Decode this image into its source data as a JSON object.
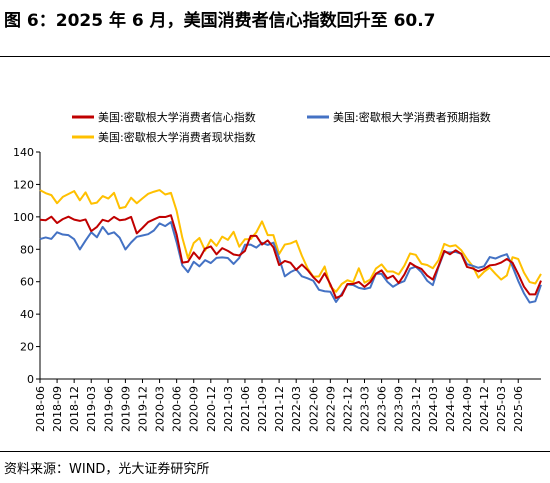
{
  "page": {
    "title": "图 6：2025 年 6 月，美国消费者信心指数回升至 60.7",
    "source": "资料来源：WIND，光大证券研究所"
  },
  "chart_data": {
    "type": "line",
    "title": "",
    "xlabel": "",
    "ylabel": "",
    "ylim": [
      0,
      140
    ],
    "yticks": [
      "0",
      "20",
      "40",
      "60",
      "80",
      "100",
      "120",
      "140"
    ],
    "xtick_labels": [
      "2018-06",
      "2018-09",
      "2018-12",
      "2019-03",
      "2019-06",
      "2019-09",
      "2019-12",
      "2020-03",
      "2020-06",
      "2020-09",
      "2020-12",
      "2021-03",
      "2021-06",
      "2021-09",
      "2021-12",
      "2022-03",
      "2022-06",
      "2022-09",
      "2022-12",
      "2023-03",
      "2023-06",
      "2023-09",
      "2023-12",
      "2024-03",
      "2024-06",
      "2024-09",
      "2024-12",
      "2025-03",
      "2025-06"
    ],
    "legend_placement": "top",
    "grid": false,
    "series": [
      {
        "name": "美国:密歇根大学消费者信心指数",
        "color": "#c00000",
        "values": [
          98.2,
          97.9,
          100.1,
          96.2,
          98.6,
          100.1,
          98.3,
          97.5,
          98.4,
          91.2,
          93.8,
          98.2,
          97.2,
          100.0,
          97.9,
          98.4,
          100.0,
          89.8,
          93.2,
          96.8,
          98.4,
          100.0,
          99.9,
          101.0,
          89.1,
          71.8,
          72.3,
          78.1,
          74.1,
          80.4,
          81.8,
          76.9,
          80.7,
          79.0,
          76.8,
          76.2,
          79.0,
          88.3,
          88.3,
          82.9,
          85.5,
          81.2,
          70.3,
          72.8,
          71.7,
          67.4,
          70.6,
          67.2,
          62.8,
          59.4,
          65.2,
          58.4,
          50.0,
          51.5,
          58.6,
          58.6,
          59.9,
          56.8,
          59.7,
          64.9,
          67.0,
          62.0,
          63.7,
          59.2,
          64.4,
          71.6,
          69.4,
          67.9,
          63.8,
          61.3,
          69.7,
          79.0,
          76.9,
          79.4,
          77.2,
          69.1,
          68.2,
          66.4,
          67.9,
          70.1,
          70.5,
          71.8,
          74.0,
          71.7,
          64.7,
          57.0,
          52.2,
          52.2,
          60.7
        ]
      },
      {
        "name": "美国:密歇根大学消费者预期指数",
        "color": "#4472c4",
        "values": [
          86.3,
          87.3,
          86.4,
          90.5,
          89.1,
          88.7,
          86.2,
          79.9,
          85.4,
          90.5,
          87.4,
          93.8,
          89.3,
          90.5,
          87.1,
          79.9,
          84.2,
          87.7,
          88.5,
          89.3,
          91.6,
          96.0,
          94.3,
          96.8,
          84.3,
          70.1,
          65.9,
          72.3,
          69.5,
          73.3,
          71.5,
          74.7,
          75.0,
          74.6,
          71.0,
          74.7,
          82.8,
          82.9,
          81.0,
          84.0,
          82.7,
          84.1,
          74.6,
          63.3,
          65.9,
          67.6,
          63.3,
          62.1,
          60.6,
          55.0,
          54.1,
          53.8,
          47.5,
          52.5,
          58.3,
          58.0,
          56.2,
          55.5,
          56.3,
          65.0,
          64.8,
          60.0,
          56.9,
          59.0,
          60.4,
          68.0,
          69.3,
          65.9,
          60.6,
          57.9,
          69.1,
          78.3,
          78.0,
          78.4,
          77.2,
          70.8,
          69.8,
          68.6,
          69.5,
          75.2,
          74.3,
          75.8,
          77.0,
          69.3,
          60.5,
          52.9,
          47.2,
          47.9,
          58.1
        ]
      },
      {
        "name": "美国:密歇根大学消费者现状指数",
        "color": "#ffc000",
        "values": [
          116.5,
          114.6,
          113.4,
          108.4,
          112.3,
          114.1,
          115.9,
          110.2,
          115.1,
          108.1,
          108.8,
          112.8,
          111.3,
          114.8,
          105.3,
          106.1,
          111.8,
          108.4,
          111.4,
          114.2,
          115.5,
          116.5,
          113.8,
          114.8,
          103.7,
          87.1,
          74.5,
          83.9,
          87.0,
          79.2,
          85.9,
          82.1,
          87.8,
          85.8,
          90.8,
          81.6,
          86.2,
          86.3,
          90.5,
          97.2,
          88.7,
          88.7,
          77.1,
          82.9,
          83.6,
          85.2,
          76.0,
          68.3,
          63.1,
          63.3,
          69.4,
          57.1,
          53.8,
          58.6,
          60.9,
          59.7,
          68.3,
          59.4,
          61.3,
          68.1,
          70.7,
          66.3,
          66.3,
          64.5,
          69.9,
          77.4,
          76.6,
          71.1,
          70.3,
          68.3,
          73.3,
          83.3,
          81.8,
          82.5,
          79.4,
          74.1,
          69.6,
          62.5,
          66.1,
          68.7,
          64.9,
          61.3,
          63.9,
          75.1,
          74.0,
          65.7,
          59.8,
          58.9,
          64.8
        ]
      }
    ]
  }
}
